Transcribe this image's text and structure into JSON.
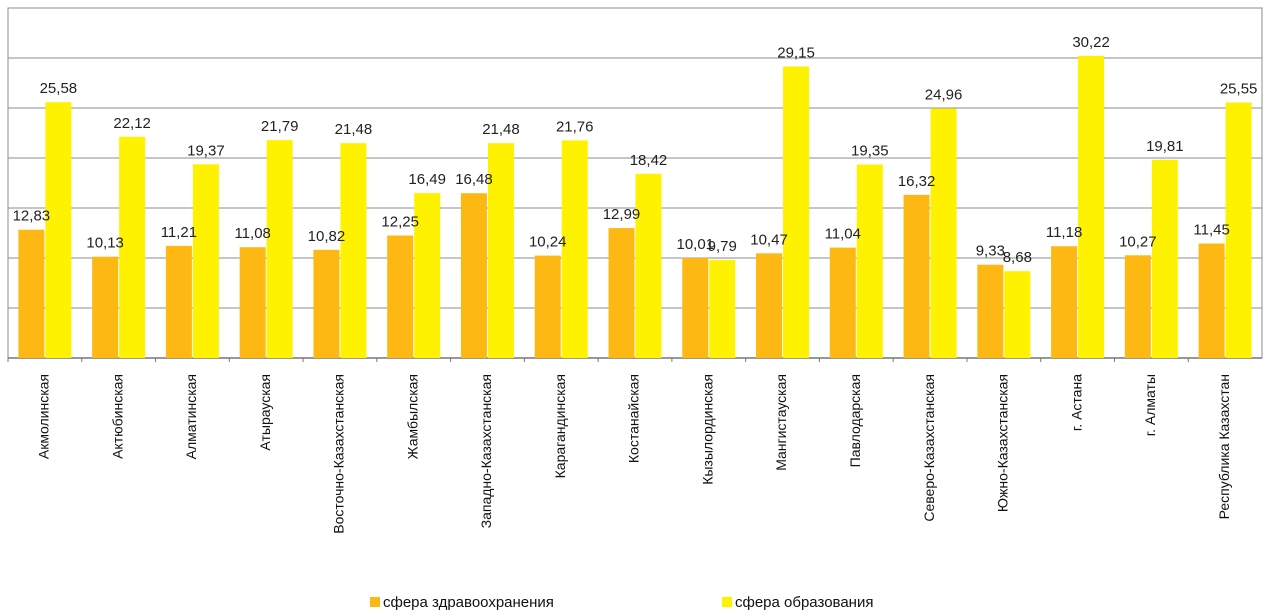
{
  "chart_data": {
    "type": "bar",
    "categories": [
      "Акмолинская",
      "Актюбинская",
      "Алматинская",
      "Атырауская",
      "Восточно-Казахстанская",
      "Жамбылская",
      "Западно-Казахстанская",
      "Карагандинская",
      "Костанайская",
      "Кызылординская",
      "Мангистауская",
      "Павлодарская",
      "Северо-Казахстанская",
      "Южно-Казахстанская",
      "г. Астана",
      "г. Алматы",
      "Республика Казахстан"
    ],
    "series": [
      {
        "name": "сфера здравоохранения",
        "color": "#FDB813",
        "values": [
          12.83,
          10.13,
          11.21,
          11.08,
          10.82,
          12.25,
          16.48,
          10.24,
          12.99,
          10.01,
          10.47,
          11.04,
          16.32,
          9.33,
          11.18,
          10.27,
          11.45
        ],
        "labels": [
          "12,83",
          "10,13",
          "11,21",
          "11,08",
          "10,82",
          "12,25",
          "16,48",
          "10,24",
          "12,99",
          "10,01",
          "10,47",
          "11,04",
          "16,32",
          "9,33",
          "11,18",
          "10,27",
          "11,45"
        ]
      },
      {
        "name": "сфера образования",
        "color": "#FFF200",
        "values": [
          25.58,
          22.12,
          19.37,
          21.79,
          21.48,
          16.49,
          21.48,
          21.76,
          18.42,
          9.79,
          29.15,
          19.35,
          24.96,
          8.68,
          30.22,
          19.81,
          25.55
        ],
        "labels": [
          "25,58",
          "22,12",
          "19,37",
          "21,79",
          "21,48",
          "16,49",
          "21,48",
          "21,76",
          "18,42",
          "9,79",
          "29,15",
          "19,35",
          "24,96",
          "8,68",
          "30,22",
          "19,81",
          "25,55"
        ]
      }
    ],
    "ylim": [
      0,
      35
    ],
    "grid": true,
    "legend_position": "bottom"
  }
}
